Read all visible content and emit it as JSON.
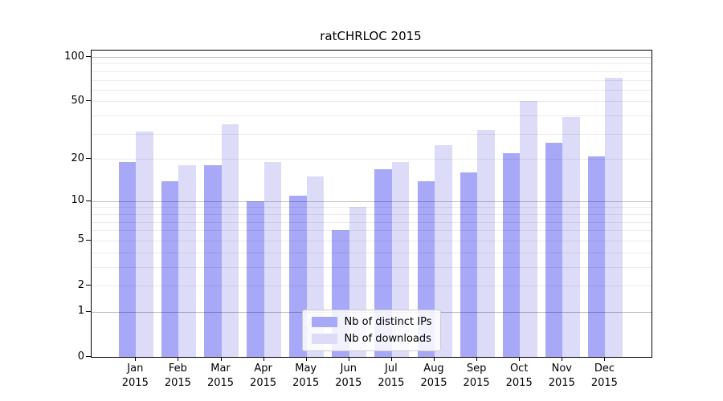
{
  "chart_data": {
    "type": "bar",
    "title": "ratCHRLOC 2015",
    "categories": [
      "Jan",
      "Feb",
      "Mar",
      "Apr",
      "May",
      "Jun",
      "Jul",
      "Aug",
      "Sep",
      "Oct",
      "Nov",
      "Dec"
    ],
    "category_year": "2015",
    "series": [
      {
        "name": "Nb of distinct IPs",
        "color": "#a8a8f8",
        "values": [
          19,
          14,
          18,
          10,
          11,
          6,
          17,
          14,
          16,
          22,
          26,
          21
        ]
      },
      {
        "name": "Nb of downloads",
        "color": "#dcdcf8",
        "values": [
          31,
          18,
          35,
          19,
          15,
          9,
          19,
          25,
          32,
          50,
          39,
          72
        ]
      }
    ],
    "y_axis": {
      "scale": "log1p",
      "tick_labels": [
        100,
        50,
        20,
        10,
        5,
        2,
        1,
        0
      ],
      "major_gridlines": [
        1,
        10,
        100
      ],
      "minor_gridlines": [
        2,
        3,
        4,
        5,
        6,
        7,
        8,
        9,
        20,
        30,
        40,
        50,
        60,
        70,
        80,
        90
      ]
    },
    "legend": {
      "position": "lower center"
    },
    "grid": true
  }
}
